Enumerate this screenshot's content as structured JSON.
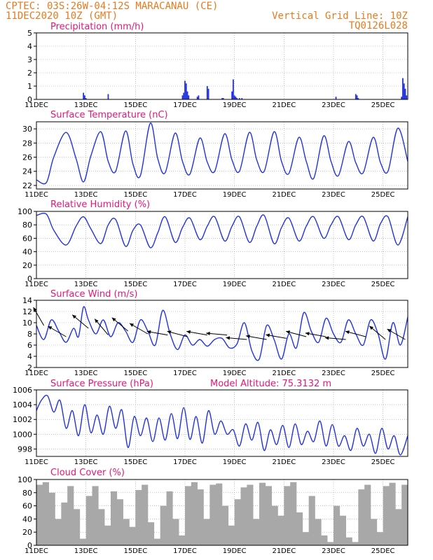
{
  "header": {
    "line1": "CPTEC:  03S:26W-04:12S  MARACANAU (CE)",
    "line2": "11DEC2020 10Z (GMT)",
    "grid_label": "Vertical Grid Line: 10Z",
    "code": "TQ0126L028",
    "model_altitude": "Model Altitude: 75.3132 m"
  },
  "colors": {
    "header": "#e87a1e",
    "titles": "#e8157a",
    "series": "#2233dd",
    "cloud": "#a8a8a8"
  },
  "x_ticks": [
    "11DEC",
    "13DEC",
    "15DEC",
    "17DEC",
    "19DEC",
    "21DEC",
    "23DEC",
    "25DEC"
  ],
  "chart_data": [
    {
      "type": "bar",
      "title": "Precipitation (mm/h)",
      "xlabel": "",
      "ylabel": "",
      "xlim_days": [
        0,
        15
      ],
      "ylim": [
        0,
        5
      ],
      "yticks": [
        0,
        1,
        2,
        3,
        4,
        5
      ],
      "grid": true,
      "x_day": [
        1.9,
        1.95,
        2.0,
        2.9,
        5.9,
        5.95,
        6.0,
        6.05,
        6.1,
        6.15,
        6.5,
        6.55,
        6.9,
        6.95,
        7.5,
        7.55,
        7.9,
        7.95,
        8.0,
        8.05,
        8.1,
        8.2,
        8.3,
        12.1,
        12.9,
        12.95,
        13.0,
        14.75,
        14.8,
        14.85,
        14.9,
        14.95
      ],
      "values": [
        0.5,
        0.3,
        0.1,
        0.4,
        0.3,
        0.5,
        1.4,
        1.2,
        0.6,
        0.3,
        0.2,
        0.3,
        1.0,
        0.8,
        0.1,
        0.1,
        0.6,
        1.5,
        0.3,
        0.2,
        0.1,
        0.1,
        0.1,
        0.2,
        0.4,
        0.3,
        0.1,
        0.2,
        1.6,
        1.2,
        0.8,
        0.3
      ]
    },
    {
      "type": "line",
      "title": "Surface Temperature (nC)",
      "xlabel": "",
      "ylabel": "",
      "xlim_days": [
        0,
        15
      ],
      "ylim": [
        21.5,
        31
      ],
      "yticks": [
        22,
        24,
        26,
        28,
        30
      ],
      "grid": true,
      "series": [
        {
          "x_day": [
            0.0,
            0.4,
            0.7,
            1.2,
            1.6,
            1.9,
            2.2,
            2.6,
            2.9,
            3.2,
            3.6,
            3.9,
            4.2,
            4.6,
            4.9,
            5.2,
            5.6,
            5.9,
            6.2,
            6.6,
            6.9,
            7.2,
            7.6,
            7.9,
            8.2,
            8.6,
            8.9,
            9.2,
            9.6,
            9.9,
            10.2,
            10.6,
            10.9,
            11.2,
            11.6,
            11.9,
            12.2,
            12.6,
            12.9,
            13.2,
            13.6,
            13.9,
            14.2,
            14.6,
            15.0
          ],
          "values": [
            22.8,
            22.4,
            26.0,
            29.5,
            25.8,
            22.5,
            26.2,
            29.6,
            25.4,
            24.0,
            29.7,
            25.0,
            23.4,
            30.8,
            25.8,
            23.8,
            29.4,
            25.4,
            23.6,
            28.7,
            25.3,
            24.0,
            29.3,
            25.6,
            24.0,
            29.5,
            25.6,
            24.0,
            29.6,
            25.4,
            23.7,
            28.8,
            25.4,
            23.0,
            29.0,
            25.4,
            23.4,
            28.2,
            25.2,
            23.8,
            28.8,
            25.2,
            24.0,
            30.1,
            25.4
          ]
        }
      ]
    },
    {
      "type": "line",
      "title": "Relative Humidity (%)",
      "xlabel": "",
      "ylabel": "",
      "xlim_days": [
        0,
        15
      ],
      "ylim": [
        0,
        100
      ],
      "yticks": [
        0,
        20,
        40,
        60,
        80,
        100
      ],
      "grid": true,
      "series": [
        {
          "x_day": [
            0.0,
            0.4,
            0.7,
            1.2,
            1.6,
            1.9,
            2.2,
            2.6,
            2.9,
            3.2,
            3.6,
            3.9,
            4.2,
            4.6,
            4.9,
            5.2,
            5.6,
            5.9,
            6.2,
            6.6,
            6.9,
            7.2,
            7.6,
            7.9,
            8.2,
            8.6,
            8.9,
            9.2,
            9.6,
            9.9,
            10.2,
            10.6,
            10.9,
            11.2,
            11.6,
            11.9,
            12.2,
            12.6,
            12.9,
            13.2,
            13.6,
            13.9,
            14.2,
            14.6,
            15.0
          ],
          "values": [
            94,
            96,
            72,
            50,
            78,
            92,
            74,
            52,
            80,
            88,
            48,
            72,
            80,
            46,
            68,
            92,
            54,
            76,
            90,
            58,
            78,
            92,
            56,
            78,
            92,
            54,
            78,
            94,
            52,
            76,
            90,
            56,
            78,
            92,
            60,
            80,
            92,
            58,
            80,
            92,
            56,
            82,
            92,
            50,
            92
          ]
        }
      ]
    },
    {
      "type": "line",
      "title": "Surface Wind (m/s)",
      "xlabel": "",
      "ylabel": "",
      "xlim_days": [
        0,
        15
      ],
      "ylim": [
        2,
        14
      ],
      "yticks": [
        2,
        4,
        6,
        8,
        10,
        12,
        14
      ],
      "grid": true,
      "series": [
        {
          "x_day": [
            0.0,
            0.3,
            0.6,
            0.9,
            1.2,
            1.5,
            1.7,
            1.9,
            2.1,
            2.4,
            2.7,
            3.0,
            3.3,
            3.6,
            3.9,
            4.2,
            4.5,
            4.8,
            5.1,
            5.4,
            5.7,
            6.0,
            6.3,
            6.6,
            6.9,
            7.2,
            7.5,
            7.8,
            8.1,
            8.4,
            8.7,
            9.0,
            9.3,
            9.6,
            9.9,
            10.2,
            10.5,
            10.8,
            11.1,
            11.4,
            11.7,
            12.0,
            12.3,
            12.6,
            12.9,
            13.2,
            13.5,
            13.8,
            14.1,
            14.4,
            14.7,
            15.0
          ],
          "values": [
            9.5,
            7.0,
            10.5,
            8.5,
            6.5,
            9.0,
            7.5,
            12.8,
            10.5,
            8.0,
            10.5,
            7.5,
            10.0,
            8.5,
            6.5,
            10.5,
            8.5,
            6.0,
            12.2,
            8.0,
            5.2,
            7.8,
            6.0,
            7.0,
            5.8,
            7.0,
            7.2,
            5.5,
            6.2,
            10.0,
            5.0,
            3.5,
            9.5,
            7.0,
            3.5,
            8.0,
            5.5,
            11.8,
            8.5,
            6.5,
            10.8,
            8.0,
            6.5,
            10.5,
            8.0,
            6.0,
            10.5,
            8.0,
            3.5,
            10.0,
            6.0,
            11.0
          ]
        }
      ],
      "wind_arrows": {
        "x_day": [
          0.3,
          1.2,
          2.1,
          2.9,
          3.7,
          4.5,
          5.3,
          6.1,
          6.9,
          7.7,
          8.5,
          9.3,
          10.1,
          10.9,
          11.7,
          12.5,
          13.3,
          14.1,
          14.9
        ],
        "values": [
          9.5,
          7.5,
          9.0,
          7.8,
          8.5,
          8.0,
          7.8,
          7.5,
          7.8,
          7.8,
          7.0,
          7.0,
          7.2,
          7.5,
          7.5,
          7.0,
          7.5,
          7.0,
          7.0
        ],
        "direction_deg": [
          120,
          150,
          140,
          130,
          140,
          150,
          170,
          165,
          170,
          175,
          175,
          170,
          170,
          165,
          170,
          175,
          165,
          140,
          150
        ]
      }
    },
    {
      "type": "line",
      "title": "Surface Pressure (hPa)",
      "xlabel": "",
      "ylabel": "",
      "xlim_days": [
        0,
        15
      ],
      "ylim": [
        997,
        1006
      ],
      "yticks": [
        998,
        1000,
        1002,
        1004,
        1006
      ],
      "grid": true,
      "series": [
        {
          "x_day": [
            0.0,
            0.2,
            0.45,
            0.7,
            0.95,
            1.2,
            1.45,
            1.7,
            1.95,
            2.2,
            2.45,
            2.7,
            2.95,
            3.2,
            3.45,
            3.7,
            3.95,
            4.2,
            4.45,
            4.7,
            4.95,
            5.2,
            5.45,
            5.7,
            5.95,
            6.2,
            6.45,
            6.7,
            6.95,
            7.2,
            7.45,
            7.7,
            7.95,
            8.2,
            8.45,
            8.7,
            8.95,
            9.2,
            9.45,
            9.7,
            9.95,
            10.2,
            10.45,
            10.7,
            10.95,
            11.2,
            11.45,
            11.7,
            11.95,
            12.2,
            12.45,
            12.7,
            12.95,
            13.2,
            13.45,
            13.7,
            13.95,
            14.2,
            14.45,
            14.7,
            15.0
          ],
          "values": [
            1003.2,
            1004.6,
            1005.2,
            1003.0,
            1004.6,
            1000.8,
            1003.2,
            999.8,
            1004.0,
            1000.2,
            1002.6,
            1000.0,
            1003.8,
            1000.8,
            1003.3,
            998.2,
            1002.4,
            999.8,
            1002.2,
            999.0,
            1002.2,
            999.2,
            1002.8,
            999.4,
            1003.6,
            999.3,
            1002.4,
            998.8,
            1003.2,
            1000.0,
            1001.8,
            1000.0,
            1000.6,
            998.4,
            1001.4,
            999.2,
            1001.6,
            997.8,
            1000.6,
            998.6,
            1001.2,
            998.2,
            1001.4,
            998.6,
            1000.4,
            999.0,
            1001.8,
            998.4,
            1001.3,
            998.4,
            999.8,
            997.8,
            1000.8,
            998.4,
            1000.0,
            997.4,
            1000.8,
            998.0,
            999.8,
            997.2,
            999.8
          ]
        }
      ]
    },
    {
      "type": "bar",
      "title": "Cloud Cover (%)",
      "xlabel": "",
      "ylabel": "",
      "xlim_days": [
        0,
        15
      ],
      "ylim": [
        0,
        100
      ],
      "yticks": [
        0,
        20,
        40,
        60,
        80,
        100
      ],
      "grid": true,
      "x_day": [
        0.0,
        0.25,
        0.5,
        0.75,
        1.0,
        1.25,
        1.5,
        1.75,
        2.0,
        2.25,
        2.5,
        2.75,
        3.0,
        3.25,
        3.5,
        3.75,
        4.0,
        4.25,
        4.5,
        4.75,
        5.0,
        5.25,
        5.5,
        5.75,
        6.0,
        6.25,
        6.5,
        6.75,
        7.0,
        7.25,
        7.5,
        7.75,
        8.0,
        8.25,
        8.5,
        8.75,
        9.0,
        9.25,
        9.5,
        9.75,
        10.0,
        10.25,
        10.5,
        10.75,
        11.0,
        11.25,
        11.5,
        11.75,
        12.0,
        12.25,
        12.5,
        12.75,
        13.0,
        13.25,
        13.5,
        13.75,
        14.0,
        14.25,
        14.5,
        14.75
      ],
      "values": [
        92,
        96,
        80,
        40,
        65,
        90,
        55,
        10,
        75,
        90,
        55,
        30,
        82,
        70,
        40,
        28,
        84,
        92,
        35,
        10,
        60,
        82,
        40,
        15,
        90,
        96,
        85,
        40,
        92,
        94,
        60,
        30,
        70,
        88,
        92,
        40,
        95,
        90,
        60,
        45,
        90,
        96,
        50,
        20,
        75,
        40,
        15,
        5,
        60,
        45,
        12,
        5,
        85,
        92,
        40,
        20,
        90,
        95,
        55,
        92
      ]
    }
  ]
}
